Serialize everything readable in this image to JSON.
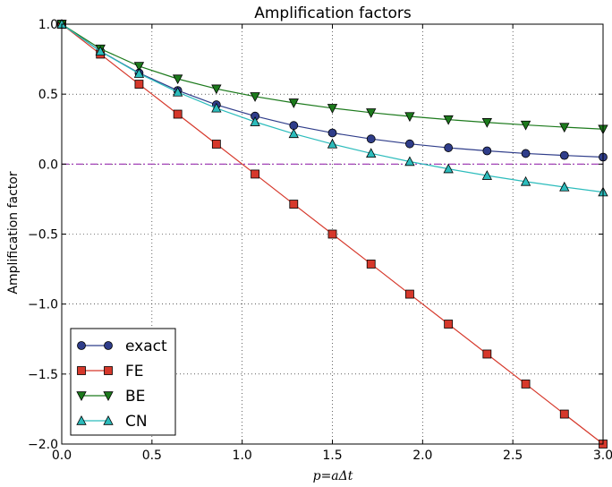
{
  "chart_data": {
    "type": "line",
    "title": "Amplification factors",
    "xlabel": "p=aΔt",
    "ylabel": "Amplification factor",
    "xlim": [
      0.0,
      3.0
    ],
    "ylim": [
      -2.0,
      1.0
    ],
    "xticks": [
      "0.0",
      "0.5",
      "1.0",
      "1.5",
      "2.0",
      "2.5",
      "3.0"
    ],
    "yticks": [
      "1.0",
      "0.5",
      "0.0",
      "−0.5",
      "−1.0",
      "−1.5",
      "−2.0"
    ],
    "grid": true,
    "legend_position": "lower-left",
    "x": [
      0.0,
      0.2143,
      0.4286,
      0.6429,
      0.8571,
      1.0714,
      1.2857,
      1.5,
      1.7143,
      1.9286,
      2.1429,
      2.3571,
      2.5714,
      2.7857,
      3.0
    ],
    "series": [
      {
        "name": "exact",
        "color": "#2f3d8a",
        "marker": "circle",
        "values": [
          1.0,
          0.807,
          0.651,
          0.526,
          0.424,
          0.343,
          0.276,
          0.223,
          0.18,
          0.145,
          0.117,
          0.095,
          0.076,
          0.062,
          0.05
        ]
      },
      {
        "name": "FE",
        "color": "#d6382b",
        "marker": "square",
        "values": [
          1.0,
          0.786,
          0.571,
          0.357,
          0.143,
          -0.071,
          -0.286,
          -0.5,
          -0.714,
          -0.929,
          -1.143,
          -1.357,
          -1.571,
          -1.786,
          -2.0
        ]
      },
      {
        "name": "BE",
        "color": "#1c7a1c",
        "marker": "triangle-down",
        "values": [
          1.0,
          0.824,
          0.7,
          0.609,
          0.538,
          0.483,
          0.438,
          0.4,
          0.368,
          0.341,
          0.318,
          0.298,
          0.28,
          0.264,
          0.25
        ]
      },
      {
        "name": "CN",
        "color": "#2cbcbc",
        "marker": "triangle-up",
        "values": [
          1.0,
          0.806,
          0.647,
          0.514,
          0.4,
          0.302,
          0.217,
          0.143,
          0.077,
          0.018,
          -0.034,
          -0.082,
          -0.125,
          -0.164,
          -0.2
        ]
      }
    ],
    "reference_line": {
      "y": 0.0,
      "style": "dash-dot",
      "color": "#9a2fb0"
    }
  }
}
